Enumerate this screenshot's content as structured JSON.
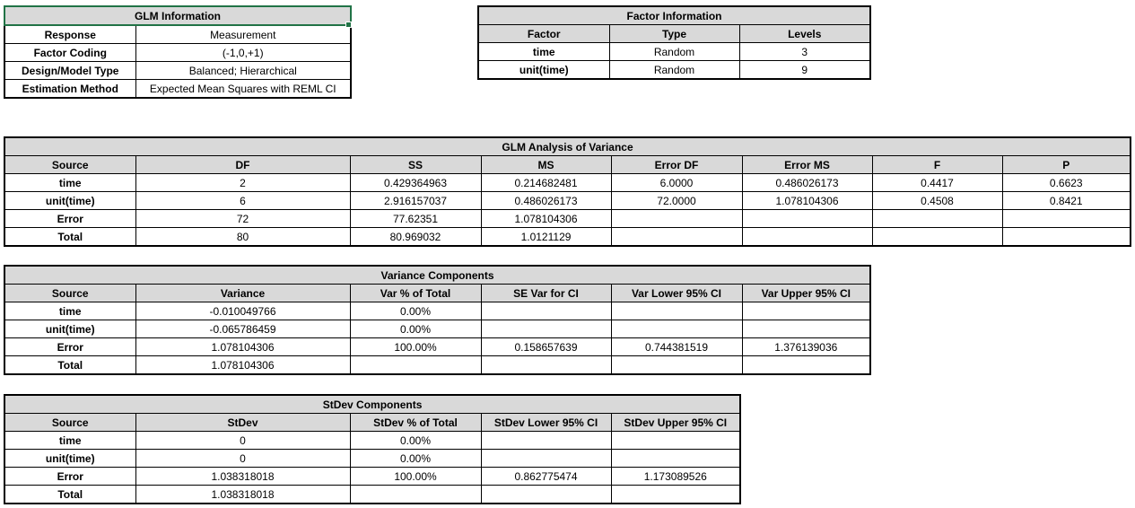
{
  "glm_info": {
    "title": "GLM Information",
    "rows": [
      {
        "label": "Response",
        "value": "Measurement"
      },
      {
        "label": "Factor Coding",
        "value": "(-1,0,+1)"
      },
      {
        "label": "Design/Model Type",
        "value": "Balanced; Hierarchical"
      },
      {
        "label": "Estimation Method",
        "value": "Expected Mean Squares with REML CI"
      }
    ]
  },
  "factor_info": {
    "title": "Factor Information",
    "headers": [
      "Factor",
      "Type",
      "Levels"
    ],
    "rows": [
      [
        "time",
        "Random",
        "3"
      ],
      [
        "unit(time)",
        "Random",
        "9"
      ]
    ]
  },
  "anova": {
    "title": "GLM Analysis of Variance",
    "headers": [
      "Source",
      "DF",
      "SS",
      "MS",
      "Error DF",
      "Error MS",
      "F",
      "P"
    ],
    "rows": [
      [
        "time",
        "2",
        "0.429364963",
        "0.214682481",
        "6.0000",
        "0.486026173",
        "0.4417",
        "0.6623"
      ],
      [
        "unit(time)",
        "6",
        "2.916157037",
        "0.486026173",
        "72.0000",
        "1.078104306",
        "0.4508",
        "0.8421"
      ],
      [
        "Error",
        "72",
        "77.62351",
        "1.078104306",
        "",
        "",
        "",
        ""
      ],
      [
        "Total",
        "80",
        "80.969032",
        "1.0121129",
        "",
        "",
        "",
        ""
      ]
    ]
  },
  "variance": {
    "title": "Variance Components",
    "headers": [
      "Source",
      "Variance",
      "Var % of Total",
      "SE Var for CI",
      "Var Lower 95% CI",
      "Var Upper 95% CI"
    ],
    "rows": [
      [
        "time",
        "-0.010049766",
        "0.00%",
        "",
        "",
        ""
      ],
      [
        "unit(time)",
        "-0.065786459",
        "0.00%",
        "",
        "",
        ""
      ],
      [
        "Error",
        "1.078104306",
        "100.00%",
        "0.158657639",
        "0.744381519",
        "1.376139036"
      ],
      [
        "Total",
        "1.078104306",
        "",
        "",
        "",
        ""
      ]
    ]
  },
  "stdev": {
    "title": "StDev Components",
    "headers": [
      "Source",
      "StDev",
      "StDev % of Total",
      "StDev Lower 95% CI",
      "StDev Upper 95% CI"
    ],
    "rows": [
      [
        "time",
        "0",
        "0.00%",
        "",
        ""
      ],
      [
        "unit(time)",
        "0",
        "0.00%",
        "",
        ""
      ],
      [
        "Error",
        "1.038318018",
        "100.00%",
        "0.862775474",
        "1.173089526"
      ],
      [
        "Total",
        "1.038318018",
        "",
        "",
        ""
      ]
    ]
  }
}
